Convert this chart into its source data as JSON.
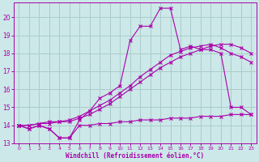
{
  "bg_color": "#cce8e8",
  "grid_color": "#aacccc",
  "line_color": "#aa00aa",
  "xlabel": "Windchill (Refroidissement éolien,°C)",
  "xlim": [
    -0.5,
    23.5
  ],
  "ylim": [
    13,
    20.8
  ],
  "xticks": [
    0,
    1,
    2,
    3,
    4,
    5,
    6,
    7,
    8,
    9,
    10,
    11,
    12,
    13,
    14,
    15,
    16,
    17,
    18,
    19,
    20,
    21,
    22,
    23
  ],
  "yticks": [
    13,
    14,
    15,
    16,
    17,
    18,
    19,
    20
  ],
  "series": [
    {
      "x": [
        0,
        1,
        2,
        3,
        4,
        5,
        6,
        7,
        8,
        9,
        10,
        11,
        12,
        13,
        14,
        15,
        16,
        17,
        18,
        19,
        20,
        21,
        22,
        23
      ],
      "y": [
        14.0,
        13.8,
        14.0,
        13.8,
        13.3,
        13.3,
        14.3,
        14.8,
        15.5,
        15.8,
        16.2,
        18.7,
        19.5,
        19.5,
        20.5,
        20.5,
        18.2,
        18.4,
        18.2,
        18.2,
        18.0,
        15.0,
        15.0,
        14.6
      ]
    },
    {
      "x": [
        0,
        1,
        2,
        3,
        4,
        5,
        6,
        7,
        8,
        9,
        10,
        11,
        12,
        13,
        14,
        15,
        16,
        17,
        18,
        19,
        20,
        21,
        22,
        23
      ],
      "y": [
        14.0,
        14.0,
        14.1,
        14.1,
        14.2,
        14.2,
        14.4,
        14.6,
        14.9,
        15.2,
        15.6,
        16.0,
        16.4,
        16.8,
        17.2,
        17.5,
        17.8,
        18.0,
        18.2,
        18.4,
        18.5,
        18.5,
        18.3,
        18.0
      ]
    },
    {
      "x": [
        0,
        1,
        2,
        3,
        4,
        5,
        6,
        7,
        8,
        9,
        10,
        11,
        12,
        13,
        14,
        15,
        16,
        17,
        18,
        19,
        20,
        21,
        22,
        23
      ],
      "y": [
        14.0,
        14.0,
        14.1,
        14.2,
        14.2,
        14.3,
        14.5,
        14.8,
        15.1,
        15.4,
        15.8,
        16.2,
        16.7,
        17.1,
        17.5,
        17.9,
        18.1,
        18.3,
        18.4,
        18.5,
        18.3,
        18.0,
        17.8,
        17.5
      ]
    },
    {
      "x": [
        0,
        1,
        2,
        3,
        4,
        5,
        6,
        7,
        8,
        9,
        10,
        11,
        12,
        13,
        14,
        15,
        16,
        17,
        18,
        19,
        20,
        21,
        22,
        23
      ],
      "y": [
        14.0,
        13.8,
        14.0,
        13.8,
        13.3,
        13.3,
        14.0,
        14.0,
        14.1,
        14.1,
        14.2,
        14.2,
        14.3,
        14.3,
        14.3,
        14.4,
        14.4,
        14.4,
        14.5,
        14.5,
        14.5,
        14.6,
        14.6,
        14.6
      ]
    }
  ]
}
